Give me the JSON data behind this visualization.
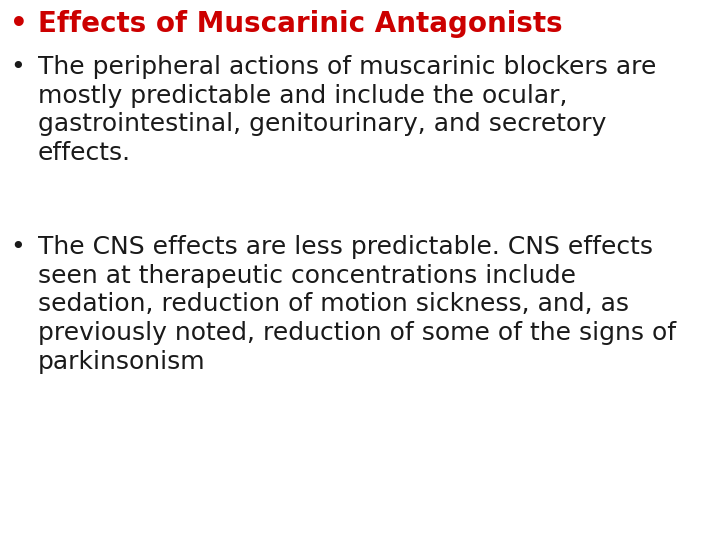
{
  "background_color": "#ffffff",
  "bullet1_text": "Effects of Muscarinic Antagonists",
  "bullet1_color": "#cc0000",
  "bullet2_text": "The peripheral actions of muscarinic blockers are\nmostly predictable and include the ocular,\ngastrointestinal, genitourinary, and secretory\neffects.",
  "bullet2_color": "#1a1a1a",
  "bullet3_text": "The CNS effects are less predictable. CNS effects\nseen at therapeutic concentrations include\nsedation, reduction of motion sickness, and, as\npreviously noted, reduction of some of the signs of\nparkinsonism",
  "bullet3_color": "#1a1a1a",
  "bullet_dot_color": "#1a1a1a",
  "font_size_title": 20,
  "font_size_body": 18,
  "font_family": "DejaVu Sans",
  "figwidth": 7.2,
  "figheight": 5.4,
  "dpi": 100
}
